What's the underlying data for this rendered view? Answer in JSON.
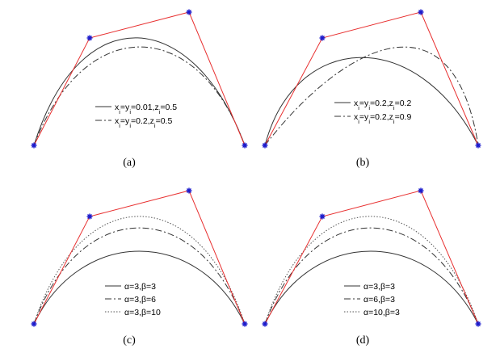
{
  "panels": [
    {
      "caption": "(a)",
      "legend": [
        [
          "x",
          "i",
          "=y",
          "i",
          "=0.01,z",
          "i",
          "=0.5"
        ],
        [
          "x",
          "i",
          "=y",
          "i",
          "=0.2,z",
          "i",
          "=0.5"
        ]
      ]
    },
    {
      "caption": "(b)",
      "legend": [
        [
          "x",
          "i",
          "=y",
          "i",
          "=0.2,z",
          "i",
          "=0.2"
        ],
        [
          "x",
          "i",
          "=y",
          "i",
          "=0.2,z",
          "i",
          "=0.9"
        ]
      ]
    },
    {
      "caption": "(c)",
      "legend": [
        [
          "α=3,β=3"
        ],
        [
          "α=3,β=6"
        ],
        [
          "α=3,β=10"
        ]
      ]
    },
    {
      "caption": "(d)",
      "legend": [
        [
          "α=3,β=3"
        ],
        [
          "α=6,β=3"
        ],
        [
          "α=10,β=3"
        ]
      ]
    }
  ]
}
